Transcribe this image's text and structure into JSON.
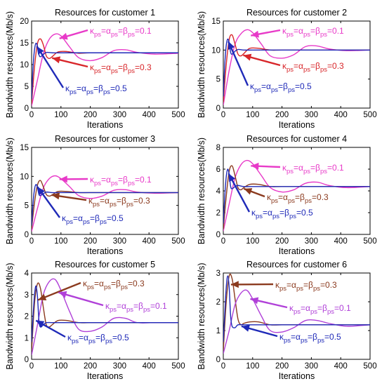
{
  "chart_data": [
    {
      "type": "line",
      "title": "Resources for customer 1",
      "xlabel": "Iterations",
      "ylabel": "Bandwidth resources(Mb/s)",
      "xlim": [
        0,
        500
      ],
      "ylim": [
        0,
        20
      ],
      "xticks": [
        0,
        100,
        200,
        300,
        400,
        500
      ],
      "yticks": [
        0,
        5,
        10,
        15,
        20
      ],
      "steady": 12.7,
      "series": [
        {
          "name": "κps=αps=βps=0.1",
          "color": "#e83ac8",
          "sub": [
            "κ",
            "ps",
            "=α",
            "ps",
            "=β",
            "ps",
            "=0.1"
          ],
          "x": [
            0,
            20,
            40,
            60,
            80,
            100,
            130,
            160,
            200,
            240,
            280,
            320,
            360,
            420,
            500
          ],
          "y": [
            0.5,
            6.5,
            12.5,
            15.8,
            17.0,
            16.6,
            14.0,
            11.6,
            10.9,
            11.6,
            13.2,
            13.4,
            12.8,
            12.4,
            12.6
          ]
        },
        {
          "name": "κps=αps=βps=0.3",
          "color": "#d8262a",
          "sub": [
            "κ",
            "ps",
            "=α",
            "ps",
            "=β",
            "ps",
            "=0.3"
          ],
          "x": [
            0,
            10,
            20,
            30,
            40,
            50,
            60,
            70,
            90,
            120,
            160,
            200,
            300,
            500
          ],
          "y": [
            1.0,
            9.5,
            14.8,
            15.9,
            14.5,
            12.0,
            11.4,
            11.8,
            12.9,
            13.0,
            12.6,
            12.7,
            12.7,
            12.7
          ]
        },
        {
          "name": "κps=αps=βps=0.5",
          "color": "#1f2ab8",
          "sub": [
            "κ",
            "ps",
            "=α",
            "ps",
            "=β",
            "ps",
            "=0.5"
          ],
          "x": [
            0,
            5,
            10,
            15,
            20,
            25,
            30,
            40,
            50,
            70,
            100,
            200,
            500
          ],
          "y": [
            2.0,
            9.5,
            13.5,
            14.9,
            14.2,
            12.3,
            11.8,
            12.3,
            12.8,
            12.7,
            12.7,
            12.7,
            12.7
          ]
        }
      ]
    },
    {
      "type": "line",
      "title": "Resources for customer 2",
      "xlabel": "Iterations",
      "ylabel": "Bandwidth resources(Mb/s)",
      "xlim": [
        0,
        500
      ],
      "ylim": [
        0,
        15
      ],
      "xticks": [
        0,
        100,
        200,
        300,
        400,
        500
      ],
      "yticks": [
        0,
        5,
        10,
        15
      ],
      "steady": 10.0,
      "series": [
        {
          "name": "κps=αps=βps=0.1",
          "color": "#e83ac8",
          "sub": [
            "κ",
            "ps",
            "=α",
            "ps",
            "=β",
            "ps",
            "=0.1"
          ],
          "x": [
            0,
            20,
            40,
            60,
            80,
            100,
            130,
            160,
            200,
            240,
            280,
            320,
            360,
            420,
            500
          ],
          "y": [
            0.5,
            6.5,
            11.0,
            12.8,
            13.5,
            13.0,
            11.0,
            9.0,
            8.6,
            9.2,
            10.6,
            10.7,
            10.2,
            9.9,
            10.0
          ]
        },
        {
          "name": "κps=αps=βps=0.3",
          "color": "#d8262a",
          "sub": [
            "κ",
            "ps",
            "=α",
            "ps",
            "=β",
            "ps",
            "=0.3"
          ],
          "x": [
            0,
            10,
            20,
            30,
            40,
            50,
            60,
            70,
            90,
            120,
            160,
            200,
            300,
            500
          ],
          "y": [
            1.0,
            7.5,
            11.8,
            12.6,
            11.0,
            9.3,
            9.0,
            9.4,
            10.3,
            10.3,
            10.0,
            10.0,
            10.0,
            10.0
          ]
        },
        {
          "name": "κps=αps=βps=0.5",
          "color": "#1f2ab8",
          "sub": [
            "κ",
            "ps",
            "=α",
            "ps",
            "=β",
            "ps",
            "=0.5"
          ],
          "x": [
            0,
            5,
            10,
            15,
            20,
            25,
            30,
            40,
            50,
            70,
            100,
            200,
            500
          ],
          "y": [
            2.0,
            7.5,
            10.8,
            11.9,
            11.2,
            9.6,
            9.3,
            9.8,
            10.1,
            10.0,
            10.0,
            10.0,
            10.0
          ]
        }
      ]
    },
    {
      "type": "line",
      "title": "Resources for customer 3",
      "xlabel": "Iterations",
      "ylabel": "Bandwidth resources(Mb/s)",
      "xlim": [
        0,
        500
      ],
      "ylim": [
        0,
        15
      ],
      "xticks": [
        0,
        100,
        200,
        300,
        400,
        500
      ],
      "yticks": [
        0,
        5,
        10,
        15
      ],
      "steady": 7.2,
      "series": [
        {
          "name": "κps=αps=βps=0.1",
          "color": "#e83ac8",
          "sub": [
            "κ",
            "ps",
            "=α",
            "ps",
            "=β",
            "ps",
            "=0.1"
          ],
          "x": [
            0,
            20,
            40,
            60,
            80,
            100,
            130,
            160,
            200,
            240,
            280,
            320,
            360,
            420,
            500
          ],
          "y": [
            0.5,
            4.5,
            8.0,
            9.6,
            10.1,
            9.6,
            8.2,
            6.7,
            6.2,
            6.6,
            7.6,
            7.7,
            7.3,
            7.1,
            7.2
          ]
        },
        {
          "name": "κps=αps=βps=0.3",
          "color": "#8b3a1e",
          "sub": [
            "κ",
            "ps",
            "=α",
            "ps",
            "=β",
            "ps",
            "=0.3"
          ],
          "x": [
            0,
            10,
            20,
            30,
            40,
            50,
            60,
            70,
            90,
            120,
            160,
            200,
            300,
            500
          ],
          "y": [
            1.0,
            5.5,
            8.5,
            9.3,
            8.2,
            6.9,
            6.6,
            6.8,
            7.4,
            7.4,
            7.2,
            7.2,
            7.2,
            7.2
          ]
        },
        {
          "name": "κps=αps=βps=0.5",
          "color": "#1f2ab8",
          "sub": [
            "κ",
            "ps",
            "=α",
            "ps",
            "=β",
            "ps",
            "=0.5"
          ],
          "x": [
            0,
            5,
            10,
            15,
            20,
            25,
            30,
            40,
            50,
            70,
            100,
            200,
            500
          ],
          "y": [
            1.5,
            5.5,
            7.8,
            8.6,
            8.1,
            6.9,
            6.7,
            7.0,
            7.3,
            7.2,
            7.2,
            7.2,
            7.2
          ]
        }
      ]
    },
    {
      "type": "line",
      "title": "Resources for customer 4",
      "xlabel": "Iterations",
      "ylabel": "Bandwidth resources(Mb/s)",
      "xlim": [
        0,
        500
      ],
      "ylim": [
        0,
        8
      ],
      "xticks": [
        0,
        100,
        200,
        300,
        400,
        500
      ],
      "yticks": [
        0,
        2,
        4,
        6,
        8
      ],
      "steady": 4.4,
      "series": [
        {
          "name": "κps=αps=βps=0.1",
          "color": "#e83ac8",
          "sub": [
            "κ",
            "ps",
            "=α",
            "ps",
            "=β",
            "ps",
            "=0.1"
          ],
          "x": [
            0,
            20,
            40,
            60,
            80,
            100,
            130,
            160,
            200,
            240,
            280,
            320,
            360,
            420,
            500
          ],
          "y": [
            0.3,
            2.8,
            5.2,
            6.4,
            6.8,
            6.5,
            5.4,
            4.3,
            3.9,
            4.1,
            4.7,
            4.8,
            4.5,
            4.3,
            4.4
          ]
        },
        {
          "name": "κps=αps=βps=0.3",
          "color": "#8b3a1e",
          "sub": [
            "κ",
            "ps",
            "=α",
            "ps",
            "=β",
            "ps",
            "=0.3"
          ],
          "x": [
            0,
            10,
            20,
            30,
            40,
            50,
            60,
            70,
            90,
            120,
            160,
            200,
            300,
            500
          ],
          "y": [
            0.5,
            3.5,
            5.8,
            6.3,
            5.4,
            4.3,
            4.1,
            4.3,
            4.6,
            4.6,
            4.4,
            4.4,
            4.4,
            4.4
          ]
        },
        {
          "name": "κps=αps=βps=0.5",
          "color": "#1f2ab8",
          "sub": [
            "κ",
            "ps",
            "=α",
            "ps",
            "=β",
            "ps",
            "=0.5"
          ],
          "x": [
            0,
            5,
            10,
            15,
            20,
            25,
            30,
            40,
            50,
            70,
            100,
            200,
            500
          ],
          "y": [
            1.0,
            3.5,
            5.3,
            6.0,
            5.5,
            4.4,
            4.2,
            4.4,
            4.5,
            4.4,
            4.4,
            4.4,
            4.4
          ]
        }
      ]
    },
    {
      "type": "line",
      "title": "Resources for customer 5",
      "xlabel": "Iterations",
      "ylabel": "Bandwidth resources(Mb/s)",
      "xlim": [
        0,
        500
      ],
      "ylim": [
        0,
        4
      ],
      "xticks": [
        0,
        100,
        200,
        300,
        400,
        500
      ],
      "yticks": [
        0,
        1,
        2,
        3,
        4
      ],
      "steady": 1.7,
      "series": [
        {
          "name": "κps=αps=βps=0.3",
          "color": "#8b3a1e",
          "sub": [
            "κ",
            "ps",
            "=α",
            "ps",
            "=β",
            "ps",
            "=0.3"
          ],
          "x": [
            0,
            10,
            20,
            30,
            40,
            50,
            60,
            70,
            90,
            120,
            160,
            200,
            300,
            500
          ],
          "y": [
            0.4,
            2.6,
            3.5,
            3.3,
            2.4,
            1.6,
            1.5,
            1.6,
            1.8,
            1.8,
            1.7,
            1.7,
            1.7,
            1.7
          ]
        },
        {
          "name": "κps=αps=βps=0.1",
          "color": "#b040d8",
          "sub": [
            "κ",
            "ps",
            "=α",
            "ps",
            "=β",
            "ps",
            "=0.1"
          ],
          "x": [
            0,
            20,
            40,
            60,
            80,
            100,
            130,
            160,
            200,
            240,
            280,
            320,
            360,
            420,
            500
          ],
          "y": [
            0.2,
            1.6,
            3.0,
            3.6,
            3.7,
            3.2,
            2.2,
            1.4,
            1.3,
            1.5,
            1.9,
            1.9,
            1.7,
            1.7,
            1.7
          ]
        },
        {
          "name": "κps=αps=βps=0.5",
          "color": "#1f2ab8",
          "sub": [
            "κ",
            "ps",
            "=α",
            "ps",
            "=β",
            "ps",
            "=0.5"
          ],
          "x": [
            0,
            5,
            10,
            15,
            20,
            25,
            30,
            40,
            50,
            70,
            100,
            200,
            500
          ],
          "y": [
            0.8,
            2.0,
            3.0,
            3.4,
            2.9,
            1.8,
            1.5,
            1.6,
            1.7,
            1.7,
            1.7,
            1.7,
            1.7
          ]
        }
      ]
    },
    {
      "type": "line",
      "title": "Resources for customer 6",
      "xlabel": "Iterations",
      "ylabel": "Bandwidth resources(Mb/s)",
      "xlim": [
        0,
        500
      ],
      "ylim": [
        0,
        3
      ],
      "xticks": [
        0,
        100,
        200,
        300,
        400,
        500
      ],
      "yticks": [
        0,
        1,
        2,
        3
      ],
      "steady": 1.2,
      "series": [
        {
          "name": "κps=αps=βps=0.3",
          "color": "#8b3a1e",
          "sub": [
            "κ",
            "ps",
            "=α",
            "ps",
            "=β",
            "ps",
            "=0.3"
          ],
          "x": [
            0,
            10,
            20,
            30,
            40,
            50,
            60,
            70,
            90,
            120,
            160,
            200,
            300,
            500
          ],
          "y": [
            0.3,
            2.0,
            2.9,
            2.8,
            2.1,
            1.4,
            1.2,
            1.25,
            1.3,
            1.3,
            1.2,
            1.2,
            1.2,
            1.2
          ]
        },
        {
          "name": "κps=αps=βps=0.1",
          "color": "#b040d8",
          "sub": [
            "κ",
            "ps",
            "=α",
            "ps",
            "=β",
            "ps",
            "=0.1"
          ],
          "x": [
            0,
            20,
            40,
            60,
            80,
            100,
            130,
            160,
            200,
            240,
            280,
            320,
            360,
            420,
            500
          ],
          "y": [
            0.2,
            1.0,
            1.9,
            2.3,
            2.4,
            2.1,
            1.5,
            1.0,
            0.95,
            1.1,
            1.35,
            1.35,
            1.25,
            1.15,
            1.2
          ]
        },
        {
          "name": "κps=αps=βps=0.5",
          "color": "#1f2ab8",
          "sub": [
            "κ",
            "ps",
            "=α",
            "ps",
            "=β",
            "ps",
            "=0.5"
          ],
          "x": [
            0,
            5,
            10,
            15,
            20,
            25,
            30,
            40,
            50,
            70,
            100,
            200,
            500
          ],
          "y": [
            0.6,
            1.6,
            2.5,
            2.9,
            2.5,
            1.5,
            1.15,
            1.1,
            1.2,
            1.2,
            1.2,
            1.2,
            1.2
          ]
        }
      ]
    }
  ]
}
